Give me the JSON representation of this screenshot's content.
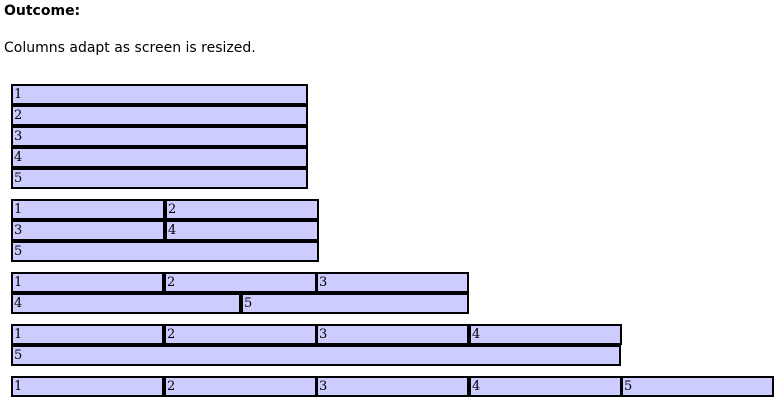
{
  "page": {
    "heading": "Outcome:",
    "description": "Columns adapt as screen is resized."
  },
  "demos": [
    {
      "name": "demo-one-column",
      "rows": [
        [
          "1"
        ],
        [
          "2"
        ],
        [
          "3"
        ],
        [
          "4"
        ],
        [
          "5"
        ]
      ]
    },
    {
      "name": "demo-two-columns",
      "rows": [
        [
          "1",
          "2"
        ],
        [
          "3",
          "4"
        ],
        [
          "5"
        ]
      ]
    },
    {
      "name": "demo-three-columns",
      "rows": [
        [
          "1",
          "2",
          "3"
        ],
        [
          "4",
          "5"
        ]
      ]
    },
    {
      "name": "demo-four-columns",
      "rows": [
        [
          "1",
          "2",
          "3",
          "4"
        ],
        [
          "5"
        ]
      ]
    },
    {
      "name": "demo-five-columns",
      "rows": [
        [
          "1",
          "2",
          "3",
          "4",
          "5"
        ]
      ]
    }
  ]
}
